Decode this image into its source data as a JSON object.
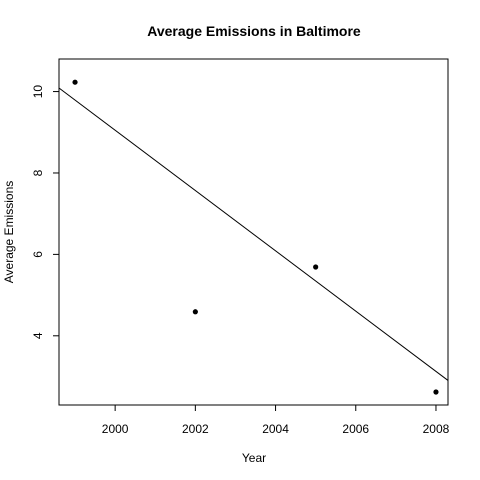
{
  "chart_data": {
    "type": "scatter",
    "title": "Average Emissions in Baltimore",
    "xlabel": "Year",
    "ylabel": "Average Emissions",
    "xlim": [
      1998.6,
      2008.3
    ],
    "ylim": [
      2.3,
      10.8
    ],
    "xticks": [
      2000,
      2002,
      2004,
      2006,
      2008
    ],
    "yticks": [
      4,
      6,
      8,
      10
    ],
    "points": [
      {
        "x": 1999,
        "y": 10.23
      },
      {
        "x": 2002,
        "y": 4.59
      },
      {
        "x": 2005,
        "y": 5.69
      },
      {
        "x": 2008,
        "y": 2.62
      }
    ],
    "trendline": {
      "slope": -0.7406,
      "intercept": 1490.25
    },
    "grid": false,
    "legend": "none"
  }
}
